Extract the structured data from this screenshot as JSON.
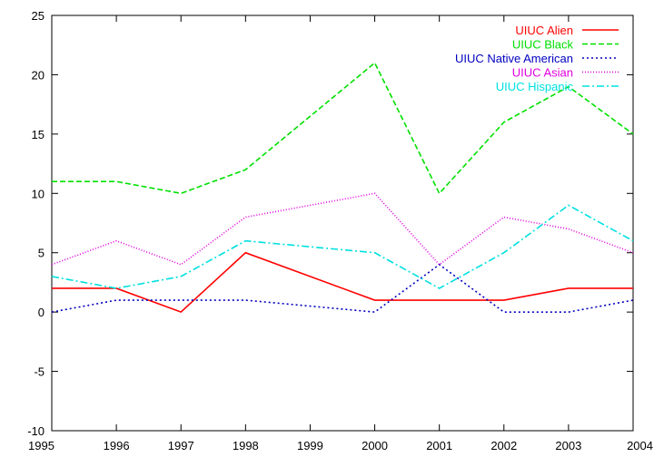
{
  "chart_data": {
    "type": "line",
    "title": "",
    "xlabel": "",
    "ylabel": "",
    "x": [
      1995,
      1996,
      1997,
      1998,
      1999,
      2000,
      2001,
      2002,
      2003,
      2004
    ],
    "xlim": [
      1995,
      2004
    ],
    "ylim": [
      -10,
      25
    ],
    "xticks": [
      "1995",
      "1996",
      "1997",
      "1998",
      "1999",
      "2000",
      "2001",
      "2002",
      "2003",
      "2004"
    ],
    "yticks": [
      "-10",
      "-5",
      "0",
      "5",
      "10",
      "15",
      "20",
      "25"
    ],
    "grid": false,
    "legend_position": "top-right",
    "series": [
      {
        "name": "UIUC Alien",
        "color": "#ff0000",
        "dash": "solid",
        "values": [
          2,
          2,
          0,
          5,
          null,
          1,
          1,
          1,
          2,
          2
        ]
      },
      {
        "name": "UIUC Black",
        "color": "#00e000",
        "dash": "dashed",
        "values": [
          11,
          11,
          10,
          12,
          null,
          21,
          10,
          16,
          19,
          15
        ]
      },
      {
        "name": "UIUC Native American",
        "color": "#0000c0",
        "dash": "dotted",
        "values": [
          0,
          1,
          1,
          1,
          null,
          0,
          4,
          0,
          0,
          1
        ]
      },
      {
        "name": "UIUC Asian",
        "color": "#e000e0",
        "dash": "fine-dotted",
        "values": [
          4,
          6,
          4,
          8,
          null,
          10,
          4,
          8,
          7,
          5
        ]
      },
      {
        "name": "UIUC Hispanic",
        "color": "#00e0e0",
        "dash": "dash-dot",
        "values": [
          3,
          2,
          3,
          6,
          null,
          5,
          2,
          5,
          9,
          6
        ]
      }
    ]
  }
}
